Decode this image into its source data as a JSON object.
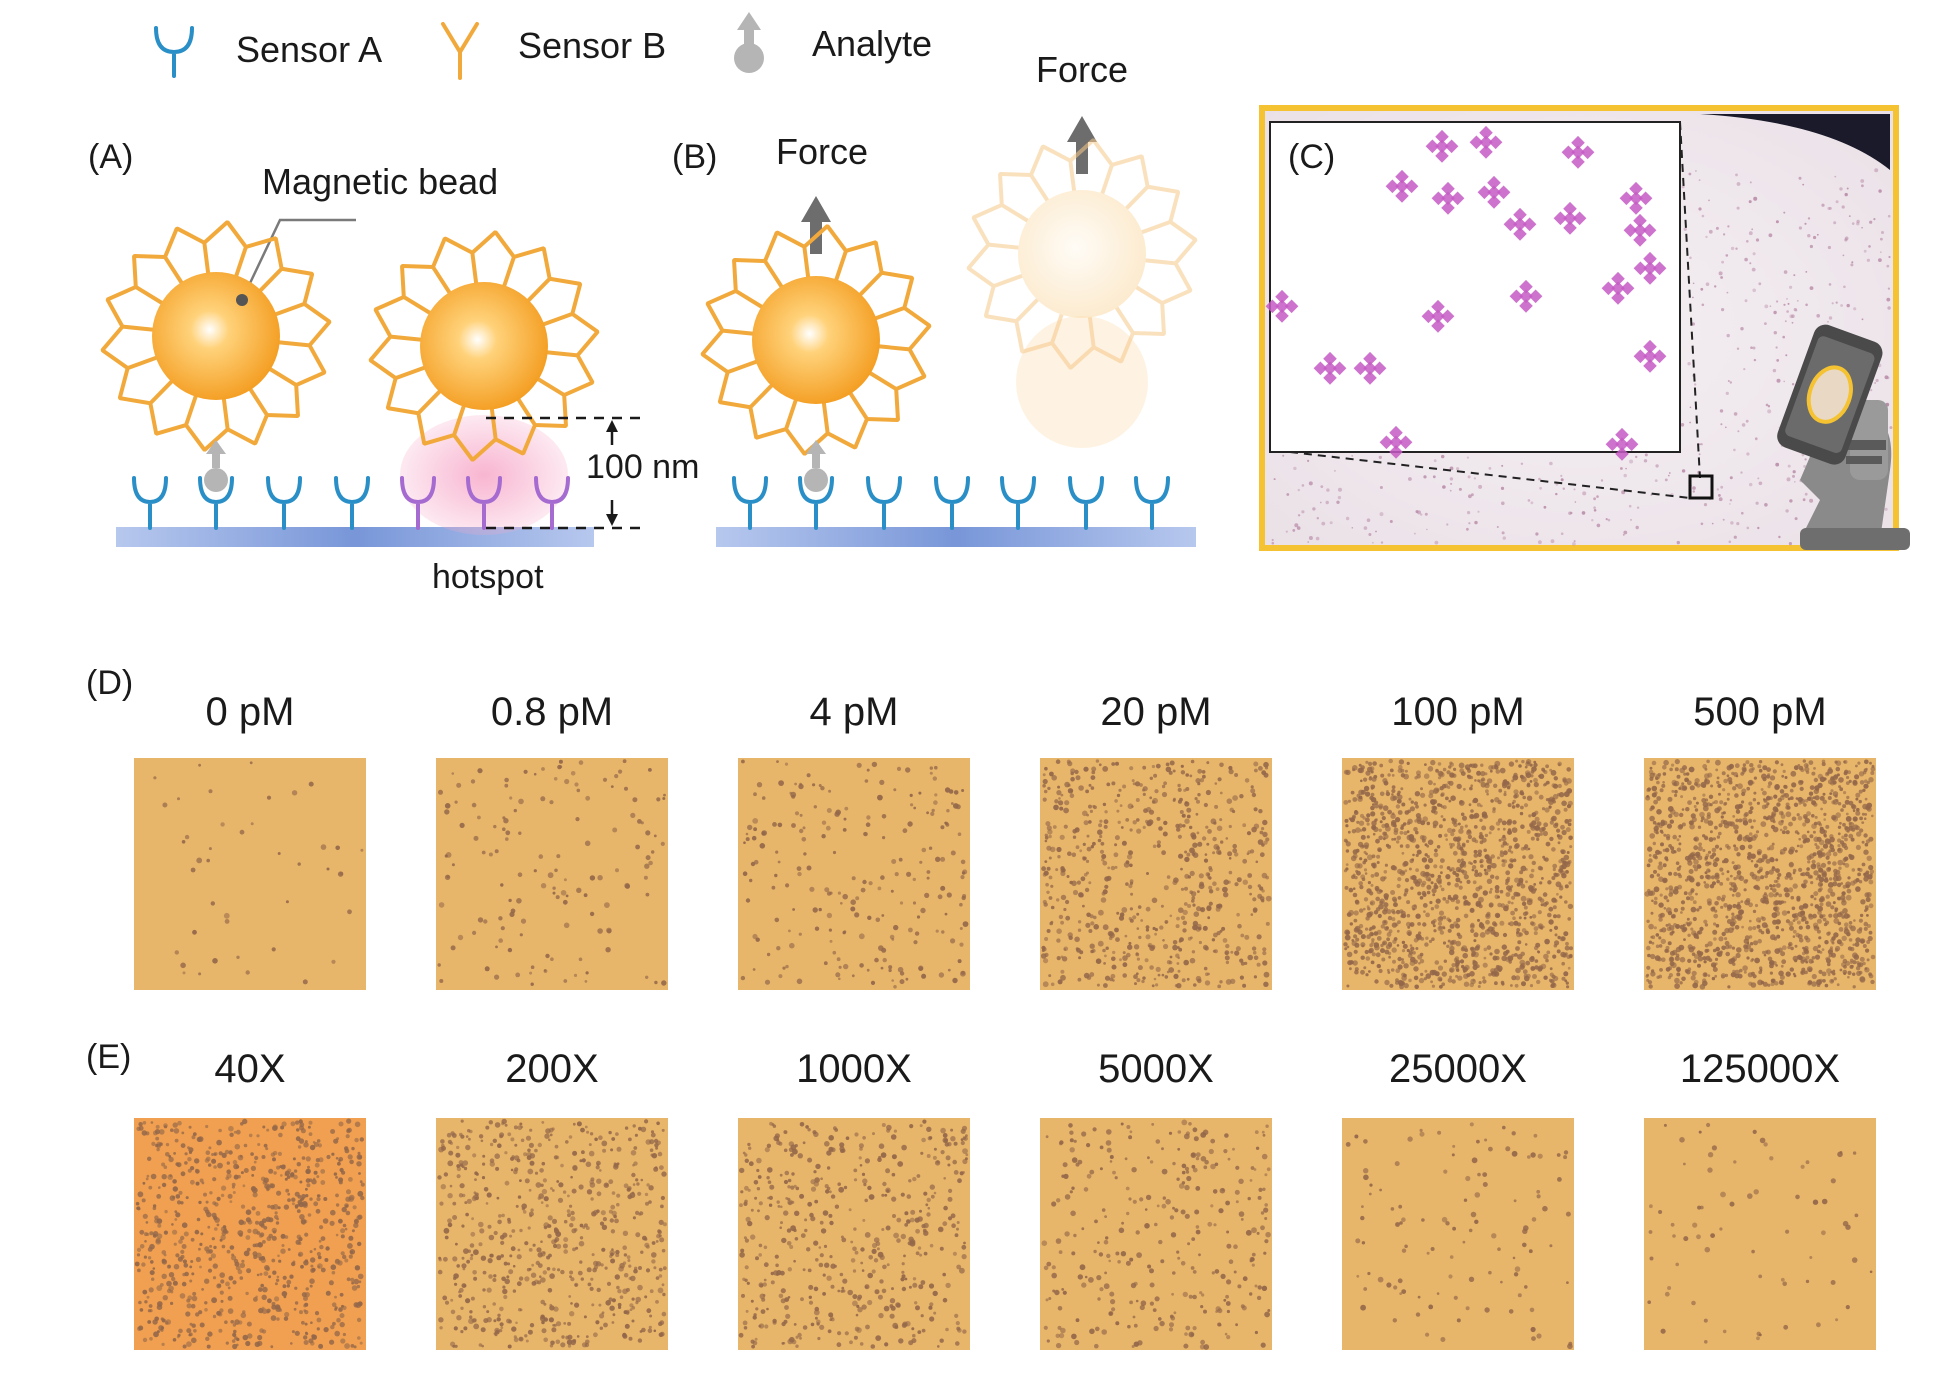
{
  "legend": {
    "sensor_a": "Sensor A",
    "sensor_b": "Sensor B",
    "analyte": "Analyte"
  },
  "panel_a": {
    "label": "(A)",
    "bead_label": "Magnetic bead",
    "distance_label": "100 nm",
    "hotspot_label": "hotspot"
  },
  "panel_b": {
    "label": "(B)",
    "force_label_left": "Force",
    "force_label_right": "Force"
  },
  "panel_c": {
    "label": "(C)"
  },
  "panel_d": {
    "label": "(D)",
    "tiles": [
      {
        "caption": "0 pM",
        "density": 0.03
      },
      {
        "caption": "0.8 pM",
        "density": 0.1
      },
      {
        "caption": "4 pM",
        "density": 0.16
      },
      {
        "caption": "20 pM",
        "density": 0.45
      },
      {
        "caption": "100 pM",
        "density": 0.95
      },
      {
        "caption": "500 pM",
        "density": 1.0
      }
    ]
  },
  "panel_e": {
    "label": "(E)",
    "tiles": [
      {
        "caption": "40X",
        "density": 0.55
      },
      {
        "caption": "200X",
        "density": 0.45
      },
      {
        "caption": "1000X",
        "density": 0.35
      },
      {
        "caption": "5000X",
        "density": 0.22
      },
      {
        "caption": "25000X",
        "density": 0.08
      },
      {
        "caption": "125000X",
        "density": 0.05
      }
    ]
  },
  "colors": {
    "sensor_a": "#2a8fc7",
    "sensor_b": "#f2a93b",
    "analyte": "#aaaaaa",
    "bead": "#f5a623",
    "surface": "#7f9fdc",
    "hotspot": "#f7a8c8",
    "frame": "#f5c231",
    "tile_d": "#e8b66a",
    "tile_e_first": "#f0a050",
    "dot": "#9a6a50"
  }
}
